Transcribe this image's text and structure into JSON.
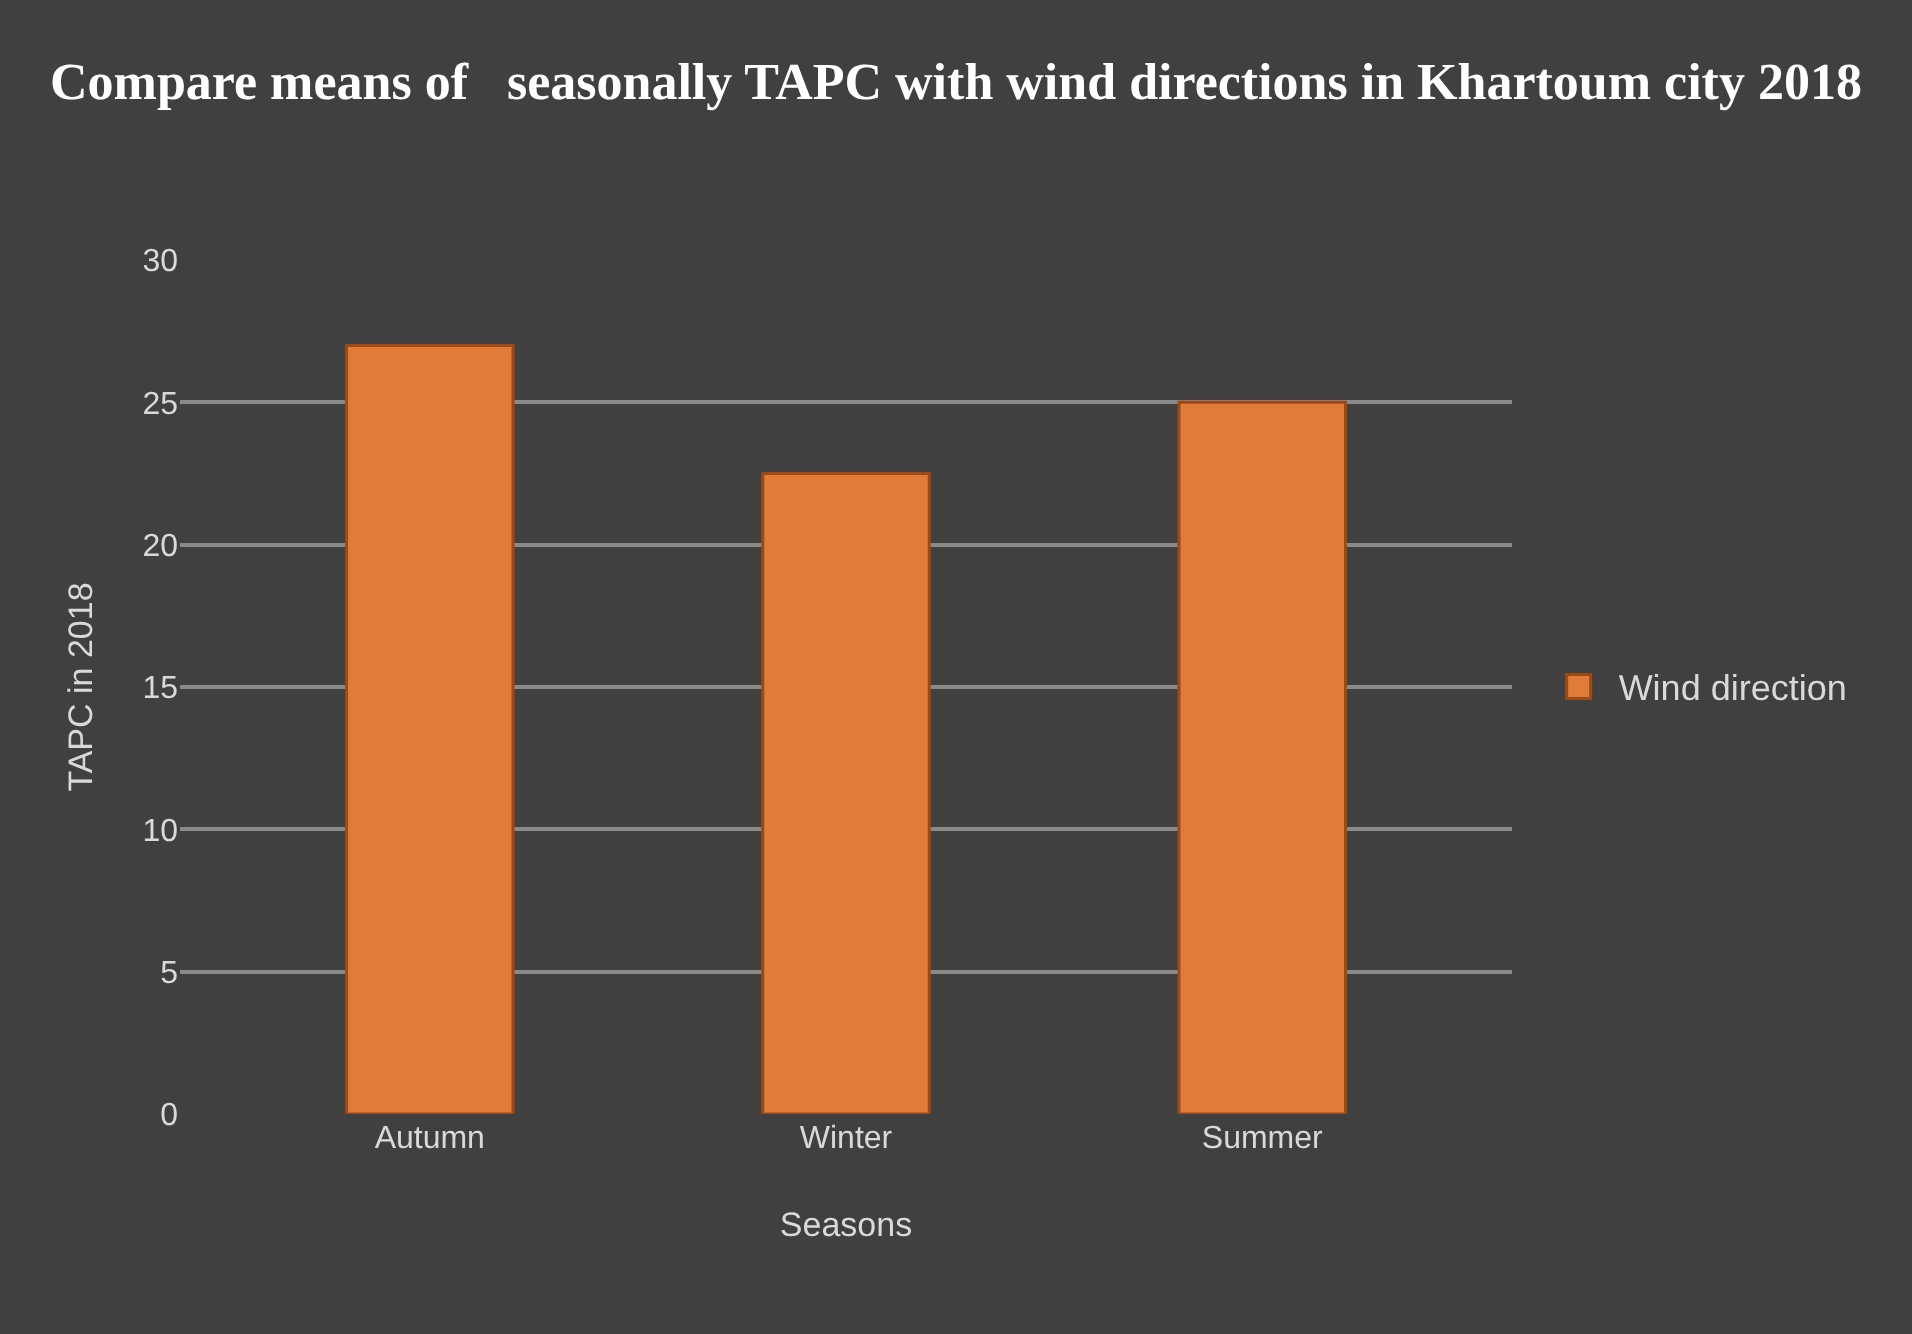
{
  "chart_data": {
    "type": "bar",
    "title": "Compare means of   seasonally TAPC with wind directions in Khartoum city 2018",
    "xlabel": "Seasons",
    "ylabel": "TAPC in 2018",
    "categories": [
      "Autumn",
      "Winter",
      "Summer"
    ],
    "series": [
      {
        "name": "Wind direction",
        "color": "#e07b39",
        "values": [
          27,
          22.5,
          25
        ]
      }
    ],
    "ylim": [
      0,
      30
    ],
    "yticks": [
      0,
      5,
      10,
      15,
      20,
      25,
      30
    ],
    "grid": "y",
    "legend": "right"
  }
}
